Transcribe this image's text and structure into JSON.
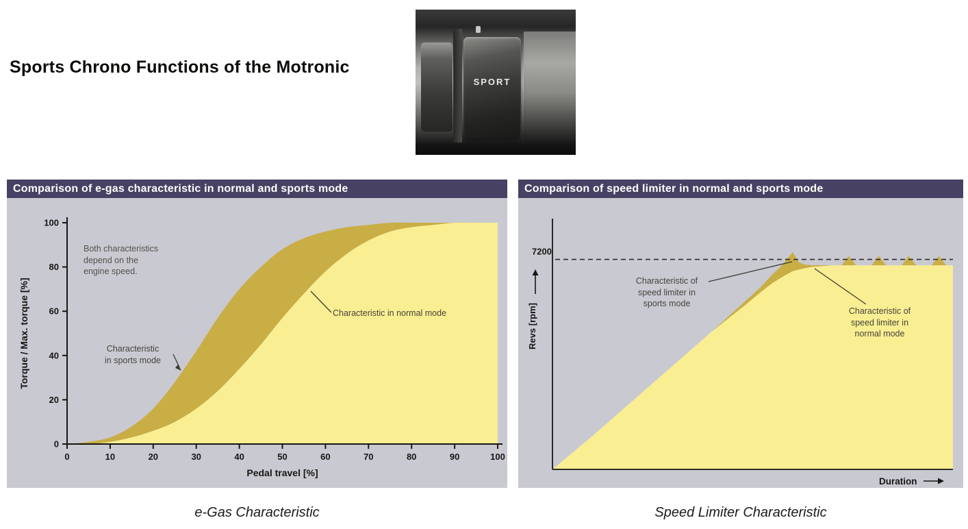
{
  "page": {
    "heading": "Sports Chrono Functions of the Motronic"
  },
  "sport_button_photo": {
    "button_label": "SPORT"
  },
  "colors": {
    "header_bar": "#474263",
    "panel_bg": "#c9c9d2",
    "light_yellow": "#f9ee92",
    "dark_yellow": "#c9ae45",
    "axis": "#171614"
  },
  "chart_data": [
    {
      "id": "egas",
      "type": "area",
      "title": "Comparison of e-gas characteristic in normal and sports mode",
      "xlabel": "Pedal travel [%]",
      "ylabel": "Torque / Max. torque [%]",
      "xlim": [
        0,
        100
      ],
      "ylim": [
        0,
        100
      ],
      "x_ticks": [
        0,
        10,
        20,
        30,
        40,
        50,
        60,
        70,
        80,
        90,
        100
      ],
      "y_ticks": [
        0,
        20,
        40,
        60,
        80,
        100
      ],
      "grid": false,
      "note": "Both characteristics\ndepend on the\nengine speed.",
      "x": [
        0,
        5,
        10,
        15,
        20,
        25,
        30,
        35,
        40,
        45,
        50,
        55,
        60,
        65,
        70,
        75,
        80,
        85,
        90,
        95,
        100
      ],
      "series": [
        {
          "name": "Characteristic in sports mode",
          "label": "Characteristic\nin sports mode",
          "values": [
            0,
            1,
            3,
            8,
            16,
            28,
            42,
            57,
            70,
            80,
            88,
            93,
            96,
            98,
            99,
            100,
            100,
            100,
            100,
            100,
            100
          ]
        },
        {
          "name": "Characteristic in normal mode",
          "label": "Characteristic in normal mode",
          "values": [
            0,
            0,
            1,
            3,
            6,
            10,
            16,
            24,
            34,
            45,
            57,
            68,
            78,
            86,
            92,
            96,
            98,
            99,
            100,
            100,
            100
          ]
        }
      ],
      "caption": "e-Gas Characteristic"
    },
    {
      "id": "limiter",
      "type": "area",
      "title": "Comparison of speed limiter in normal and sports mode",
      "xlabel": "Duration",
      "ylabel": "Revs [rpm]",
      "xlim": [
        0,
        100
      ],
      "ylim": [
        0,
        8600
      ],
      "grid": false,
      "ref_line": {
        "value": 7200,
        "label": "7200"
      },
      "series": [
        {
          "name": "Characteristic of speed limiter in sports mode",
          "label": "Characteristic of\nspeed limiter in\nsports mode",
          "points": [
            [
              0,
              0
            ],
            [
              10,
              1150
            ],
            [
              20,
              2350
            ],
            [
              30,
              3550
            ],
            [
              40,
              4750
            ],
            [
              48,
              5750
            ],
            [
              52,
              6250
            ],
            [
              55,
              6700
            ],
            [
              57,
              6950
            ],
            [
              58.5,
              7200
            ],
            [
              60,
              7450
            ],
            [
              61.5,
              7100
            ],
            [
              63,
              7020
            ],
            [
              65,
              7000
            ],
            [
              72.2,
              7000
            ],
            [
              74,
              7320
            ],
            [
              75.8,
              7000
            ],
            [
              79.7,
              7000
            ],
            [
              81.5,
              7320
            ],
            [
              83.3,
              7000
            ],
            [
              87.2,
              7000
            ],
            [
              89,
              7320
            ],
            [
              90.8,
              7000
            ],
            [
              94.7,
              7000
            ],
            [
              96.5,
              7320
            ],
            [
              98.3,
              7000
            ],
            [
              100,
              7000
            ]
          ]
        },
        {
          "name": "Characteristic of speed limiter in normal mode",
          "label": "Characteristic of\nspeed limiter in\nnormal mode",
          "points": [
            [
              0,
              0
            ],
            [
              10,
              1150
            ],
            [
              20,
              2350
            ],
            [
              30,
              3550
            ],
            [
              40,
              4750
            ],
            [
              48,
              5620
            ],
            [
              52,
              6080
            ],
            [
              55,
              6400
            ],
            [
              58,
              6650
            ],
            [
              60,
              6800
            ],
            [
              63,
              6900
            ],
            [
              65,
              6950
            ],
            [
              70,
              7000
            ],
            [
              100,
              7000
            ]
          ]
        }
      ],
      "caption": "Speed Limiter Characteristic"
    }
  ]
}
